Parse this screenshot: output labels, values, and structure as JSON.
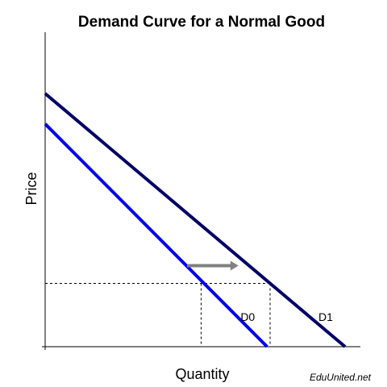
{
  "chart_data": {
    "type": "line",
    "title": "Demand Curve for a Normal Good",
    "xlabel": "Quantity",
    "ylabel": "Price",
    "xlim": [
      0,
      100
    ],
    "ylim": [
      0,
      100
    ],
    "grid": false,
    "series": [
      {
        "name": "D0",
        "color": "#0000ee",
        "points": [
          [
            0,
            88
          ],
          [
            74,
            0
          ]
        ]
      },
      {
        "name": "D1",
        "color": "#000066",
        "points": [
          [
            0,
            100
          ],
          [
            100,
            0
          ]
        ]
      }
    ],
    "reference_price": 25,
    "reference_quantities": [
      52,
      75
    ],
    "shift_arrow": {
      "from": [
        50,
        32
      ],
      "to": [
        65,
        32
      ],
      "color": "#808080"
    },
    "source": "EduUnited.net"
  }
}
